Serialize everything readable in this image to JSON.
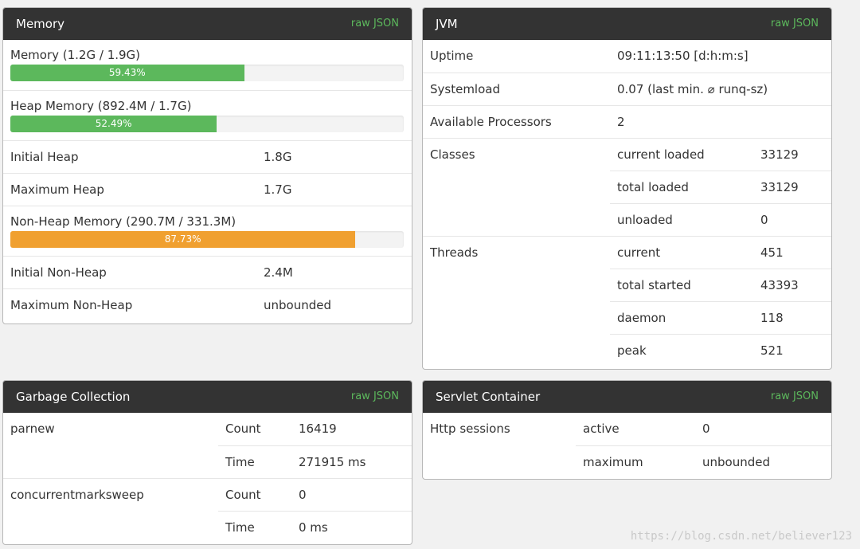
{
  "colors": {
    "header_bg": "#333333",
    "raw_json": "#5cb85c",
    "bar_green": "#5cb85c",
    "bar_orange": "#f0a030"
  },
  "memory": {
    "title": "Memory",
    "raw": "raw JSON",
    "bars": [
      {
        "label": "Memory (1.2G / 1.9G)",
        "percent_text": "59.43%",
        "fraction": 0.5943,
        "color": "green"
      },
      {
        "label": "Heap Memory (892.4M / 1.7G)",
        "percent_text": "52.49%",
        "fraction": 0.5249,
        "color": "green"
      }
    ],
    "heap_rows": [
      {
        "key": "Initial Heap",
        "value": "1.8G"
      },
      {
        "key": "Maximum Heap",
        "value": "1.7G"
      }
    ],
    "nonheap_bar": {
      "label": "Non-Heap Memory (290.7M / 331.3M)",
      "percent_text": "87.73%",
      "fraction": 0.8773,
      "color": "orange"
    },
    "nonheap_rows": [
      {
        "key": "Initial Non-Heap",
        "value": "2.4M"
      },
      {
        "key": "Maximum Non-Heap",
        "value": "unbounded"
      }
    ]
  },
  "jvm": {
    "title": "JVM",
    "raw": "raw JSON",
    "uptime": {
      "key": "Uptime",
      "value": "09:11:13:50 [d:h:m:s]"
    },
    "systemload": {
      "key": "Systemload",
      "value": "0.07 (last min. ⌀ runq-sz)"
    },
    "processors": {
      "key": "Available Processors",
      "value": "2"
    },
    "classes": {
      "key": "Classes",
      "rows": [
        {
          "key": "current loaded",
          "value": "33129"
        },
        {
          "key": "total loaded",
          "value": "33129"
        },
        {
          "key": "unloaded",
          "value": "0"
        }
      ]
    },
    "threads": {
      "key": "Threads",
      "rows": [
        {
          "key": "current",
          "value": "451"
        },
        {
          "key": "total started",
          "value": "43393"
        },
        {
          "key": "daemon",
          "value": "118"
        },
        {
          "key": "peak",
          "value": "521"
        }
      ]
    }
  },
  "gc": {
    "title": "Garbage Collection",
    "raw": "raw JSON",
    "collectors": [
      {
        "name": "parnew",
        "count_label": "Count",
        "count": "16419",
        "time_label": "Time",
        "time": "271915 ms"
      },
      {
        "name": "concurrentmarksweep",
        "count_label": "Count",
        "count": "0",
        "time_label": "Time",
        "time": "0 ms"
      }
    ]
  },
  "servlet": {
    "title": "Servlet Container",
    "raw": "raw JSON",
    "sessions": {
      "key": "Http sessions",
      "rows": [
        {
          "key": "active",
          "value": "0"
        },
        {
          "key": "maximum",
          "value": "unbounded"
        }
      ]
    }
  },
  "watermark": "https://blog.csdn.net/believer123"
}
